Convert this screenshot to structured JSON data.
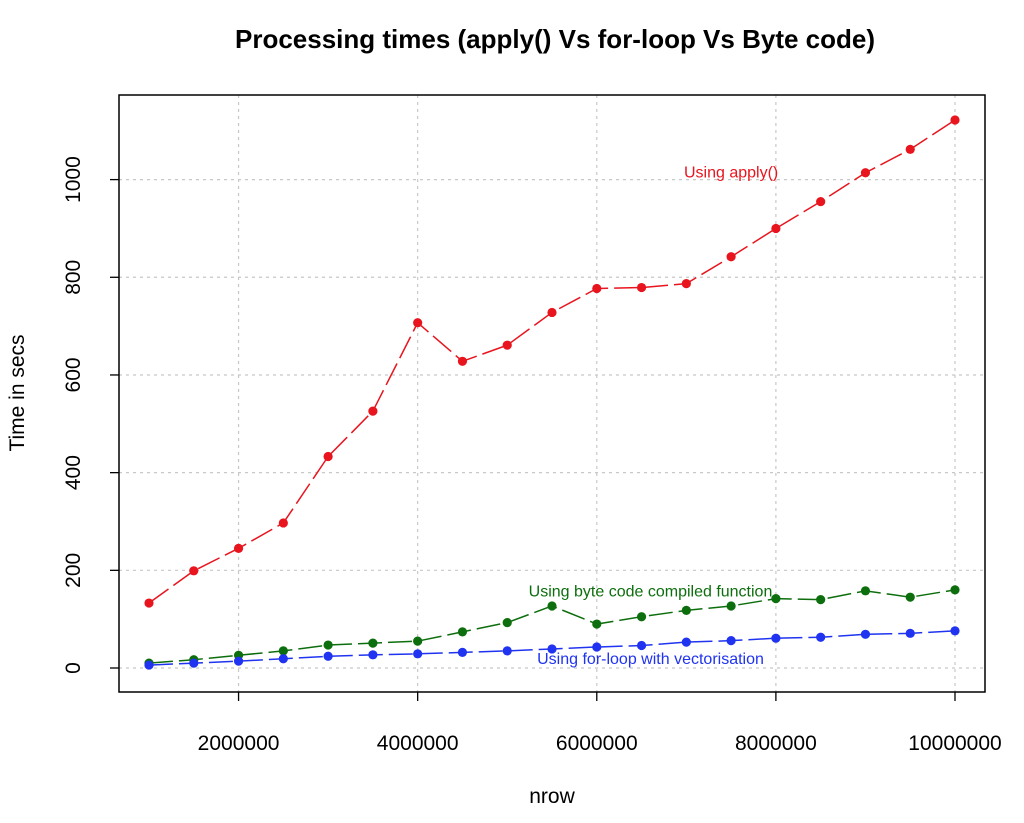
{
  "chart_data": {
    "type": "line",
    "title": "Processing times (apply() Vs for-loop Vs Byte code)",
    "xlabel": "nrow",
    "ylabel": "Time in secs",
    "xlim": [
      1000000,
      10000000
    ],
    "ylim": [
      0,
      1120
    ],
    "grid": true,
    "x_ticks": [
      2000000,
      4000000,
      6000000,
      8000000,
      10000000
    ],
    "x_tick_labels": [
      "2000000",
      "4000000",
      "6000000",
      "8000000",
      "10000000"
    ],
    "y_ticks": [
      0,
      200,
      400,
      600,
      800,
      1000
    ],
    "y_tick_labels": [
      "0",
      "200",
      "400",
      "600",
      "800",
      "1000"
    ],
    "x": [
      1000000,
      1500000,
      2000000,
      2500000,
      3000000,
      3500000,
      4000000,
      4500000,
      5000000,
      5500000,
      6000000,
      6500000,
      7000000,
      7500000,
      8000000,
      8500000,
      9000000,
      9500000,
      10000000
    ],
    "series": [
      {
        "color": "#e8141e",
        "line_style": "long-dash",
        "values": [
          133,
          199,
          245,
          297,
          433,
          526,
          707,
          628,
          661,
          728,
          777,
          779,
          787,
          842,
          900,
          955,
          1014,
          1062,
          1122
        ]
      },
      {
        "color": "#0d6e0d",
        "line_style": "long-dash",
        "values": [
          10,
          17,
          26,
          35,
          47,
          51,
          55,
          74,
          93,
          127,
          90,
          105,
          118,
          127,
          142,
          140,
          158,
          145,
          160
        ]
      },
      {
        "color": "#1f33f0",
        "line_style": "long-dash",
        "values": [
          6,
          10,
          14,
          19,
          24,
          27,
          29,
          32,
          35,
          39,
          43,
          46,
          53,
          56,
          61,
          63,
          69,
          71,
          76
        ]
      }
    ],
    "annotations": [
      {
        "text": "Using apply()",
        "color": "#e8141e",
        "x": 7500000,
        "y": 1015
      },
      {
        "text": "Using byte code compiled function",
        "color": "#0d6e0d",
        "x": 6600000,
        "y": 157
      },
      {
        "text": "Using for-loop with vectorisation",
        "color": "#1f33f0",
        "x": 6600000,
        "y": 18
      }
    ]
  }
}
